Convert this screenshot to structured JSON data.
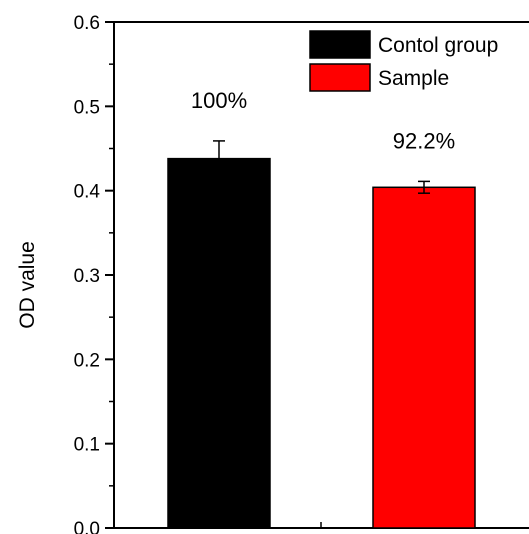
{
  "chart_data": {
    "type": "bar",
    "title": "",
    "xlabel": "",
    "ylabel": "OD value",
    "ylim": [
      0,
      0.6
    ],
    "yticks": [
      "0.0",
      "0.1",
      "0.2",
      "0.3",
      "0.4",
      "0.5",
      "0.6"
    ],
    "grid": false,
    "legend_position": "top-right",
    "categories": [
      "Contol group",
      "Sample"
    ],
    "series": [
      {
        "name": "Contol group",
        "color": "#000000",
        "value": 0.438,
        "error": 0.021,
        "label": "100%"
      },
      {
        "name": "Sample",
        "color": "#ff0000",
        "value": 0.404,
        "error": 0.007,
        "label": "92.2%"
      }
    ]
  }
}
